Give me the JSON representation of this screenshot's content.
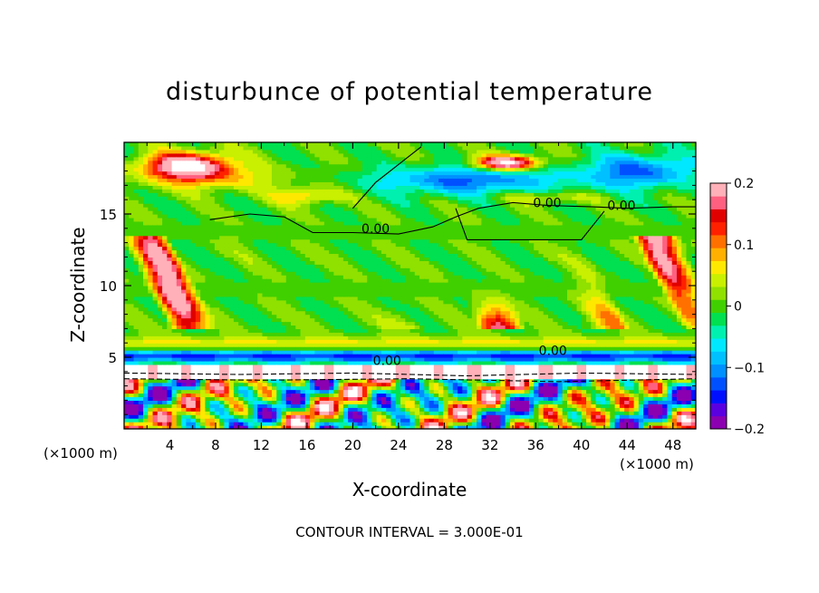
{
  "chart_data": {
    "type": "heatmap",
    "title": "disturbunce of potential temperature",
    "xlabel": "X-coordinate",
    "ylabel": "Z-coordinate",
    "x_unit_label": "(×1000 m)",
    "x_ticks": [
      4,
      8,
      12,
      16,
      20,
      24,
      28,
      32,
      36,
      40,
      44,
      48
    ],
    "y_ticks": [
      5,
      10,
      15
    ],
    "xlim": [
      0,
      50
    ],
    "ylim": [
      0,
      20
    ],
    "colorbar": {
      "range": [
        -0.2,
        0.2
      ],
      "tick_labels": [
        "0.2",
        "0.1",
        "0",
        "−0.1",
        "−0.2"
      ],
      "tick_values": [
        0.2,
        0.1,
        0,
        -0.1,
        -0.2
      ],
      "colors": [
        "#8b00b0",
        "#5a00e0",
        "#0010ff",
        "#0050ff",
        "#0090ff",
        "#00c0ff",
        "#00e8ff",
        "#00f0b0",
        "#00e050",
        "#40d000",
        "#90e000",
        "#c8f000",
        "#ffe800",
        "#ffb000",
        "#ff7000",
        "#ff2000",
        "#e00000",
        "#ff6080",
        "#ffb0b8"
      ]
    },
    "contour_labels": [
      {
        "text": "0.00",
        "x": 22.0,
        "y": 13.8
      },
      {
        "text": "0.00",
        "x": 37.0,
        "y": 15.6
      },
      {
        "text": "0.00",
        "x": 43.5,
        "y": 15.4
      },
      {
        "text": "0.00",
        "x": 23.0,
        "y": 4.6
      },
      {
        "text": "0.00",
        "x": 37.5,
        "y": 5.3
      }
    ],
    "contour_interval": "CONTOUR INTERVAL = 3.000E-01"
  }
}
